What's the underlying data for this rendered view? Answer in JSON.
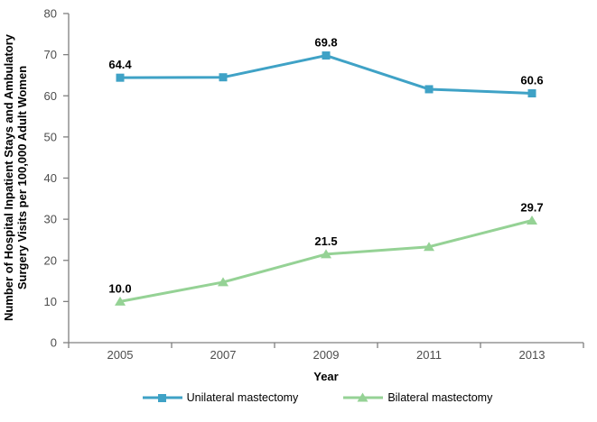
{
  "figure": {
    "background": "#ffffff"
  },
  "chart_data": {
    "type": "line",
    "title": "",
    "xlabel": "Year",
    "ylabel": "Number of Hospital Inpatient Stays and Ambulatory Surgery Visits per 100,000 Adult Women",
    "ylabel_lines": [
      "Number of Hospital Inpatient Stays and Ambulatory",
      "Surgery Visits per 100,000 Adult Women"
    ],
    "categories": [
      "2005",
      "2007",
      "2009",
      "2011",
      "2013"
    ],
    "ylim": [
      0,
      80
    ],
    "yticks": [
      0,
      10,
      20,
      30,
      40,
      50,
      60,
      70,
      80
    ],
    "grid": false,
    "legend_position": "bottom",
    "axis_color": "#808080",
    "tick_label_color": "#4d4d4d",
    "series": [
      {
        "name": "Unilateral mastectomy",
        "color": "#3FA2C6",
        "marker": "square",
        "values": [
          64.4,
          64.5,
          69.8,
          61.6,
          60.6
        ],
        "point_labels": [
          "64.4",
          "",
          "69.8",
          "",
          "60.6"
        ]
      },
      {
        "name": "Bilateral mastectomy",
        "color": "#95D295",
        "marker": "triangle",
        "values": [
          10.0,
          14.7,
          21.5,
          23.3,
          29.7
        ],
        "point_labels": [
          "10.0",
          "",
          "21.5",
          "",
          "29.7"
        ]
      }
    ]
  }
}
